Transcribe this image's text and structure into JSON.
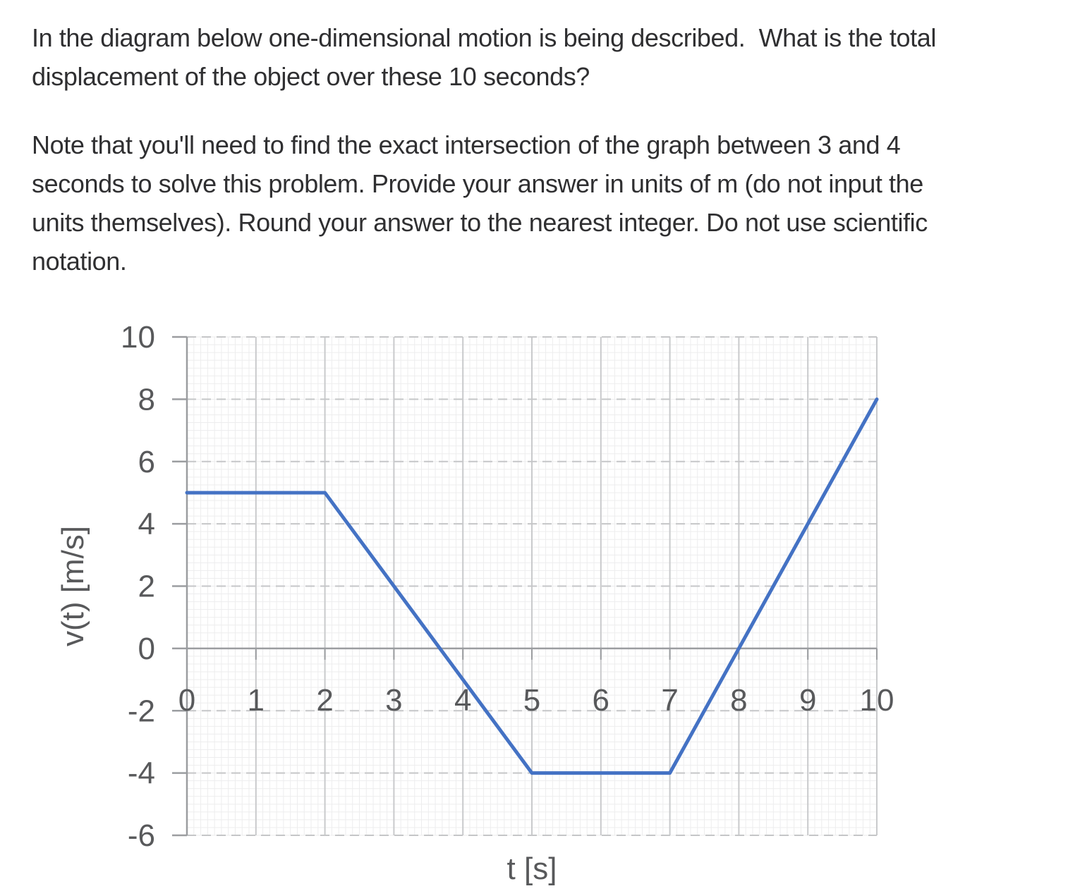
{
  "question": {
    "paragraph1": "In the diagram below one-dimensional motion is being described.  What is the total\ndisplacement of the object over these 10 seconds?",
    "paragraph2": "Note that you'll need to find the exact intersection of the graph between 3 and 4\nseconds to solve this problem. Provide your answer in units of m (do not input the\nunits themselves). Round your answer to the nearest integer. Do not use scientific\nnotation."
  },
  "chart_data": {
    "type": "line",
    "title": "",
    "xlabel": "t [s]",
    "ylabel": "v(t) [m/s]",
    "xlim": [
      0,
      10
    ],
    "ylim": [
      -6,
      10
    ],
    "x_ticks": [
      0,
      1,
      2,
      3,
      4,
      5,
      6,
      7,
      8,
      9,
      10
    ],
    "y_ticks": [
      10,
      8,
      6,
      4,
      2,
      0,
      -2,
      -4,
      -6
    ],
    "grid": {
      "minor_x_step": 0.1,
      "minor_y_step": 0.25,
      "minor_color": "#ededee",
      "major_vertical_color": "#c9cacc",
      "major_horizontal_color": "#c5c6c8",
      "major_horizontal_dashed": true,
      "axis_color": "#9b9da0"
    },
    "legend": "none",
    "series": [
      {
        "name": "v(t)",
        "color": "#4472c4",
        "points": [
          [
            0,
            5
          ],
          [
            2,
            5
          ],
          [
            5,
            -4
          ],
          [
            7,
            -4
          ],
          [
            10,
            8
          ]
        ]
      }
    ],
    "tick_label_color": "#58595b",
    "axis_title_color": "#58595b"
  }
}
